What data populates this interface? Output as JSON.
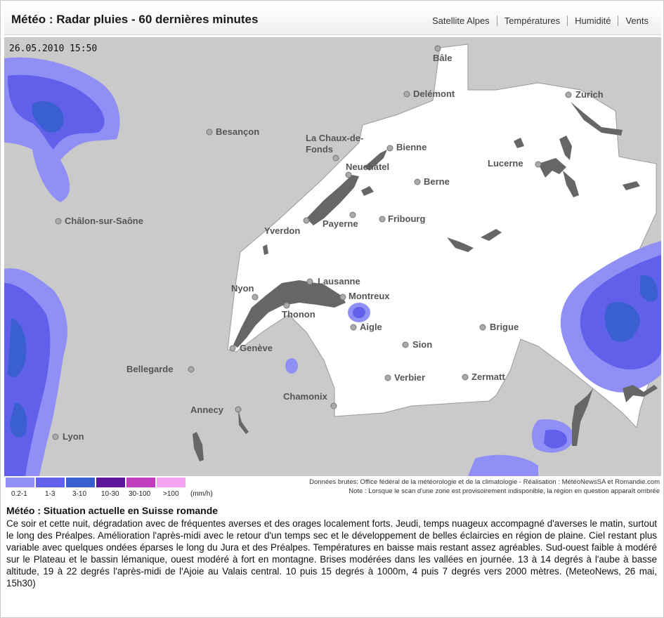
{
  "header": {
    "title": "Météo : Radar pluies - 60 dernières minutes",
    "nav": [
      {
        "label": "Satellite Alpes"
      },
      {
        "label": "Températures"
      },
      {
        "label": "Humidité"
      },
      {
        "label": "Vents"
      }
    ]
  },
  "map": {
    "timestamp": "26.05.2010 15:50",
    "colors": {
      "outside_region": "#cacaca",
      "region": "#ffffff",
      "lakes": "#666666",
      "city_marker": "#aaaaaa"
    },
    "cities": [
      {
        "name": "Bâle"
      },
      {
        "name": "Delémont"
      },
      {
        "name": "Zurich"
      },
      {
        "name": "Besançon"
      },
      {
        "name": "La Chaux-de-"
      },
      {
        "name": "Fonds"
      },
      {
        "name": "Bienne"
      },
      {
        "name": "Neuchâtel"
      },
      {
        "name": "Lucerne"
      },
      {
        "name": "Berne"
      },
      {
        "name": "Châlon-sur-Saône"
      },
      {
        "name": "Payerne"
      },
      {
        "name": "Fribourg"
      },
      {
        "name": "Yverdon"
      },
      {
        "name": "Lausanne"
      },
      {
        "name": "Nyon"
      },
      {
        "name": "Montreux"
      },
      {
        "name": "Thonon"
      },
      {
        "name": "Aigle"
      },
      {
        "name": "Brigue"
      },
      {
        "name": "Sion"
      },
      {
        "name": "Genève"
      },
      {
        "name": "Bellegarde"
      },
      {
        "name": "Verbier"
      },
      {
        "name": "Zermatt"
      },
      {
        "name": "Chamonix"
      },
      {
        "name": "Annecy"
      },
      {
        "name": "Lyon"
      }
    ]
  },
  "legend": {
    "items": [
      {
        "range": "0.2-1",
        "color": "#8f8ff5"
      },
      {
        "range": "1-3",
        "color": "#6060ea"
      },
      {
        "range": "3-10",
        "color": "#3a5fd0"
      },
      {
        "range": "10-30",
        "color": "#5c159c"
      },
      {
        "range": "30-100",
        "color": "#c23cc0"
      },
      {
        "range": ">100",
        "color": "#f5a3f0"
      }
    ],
    "unit": "(mm/h)",
    "credits": "Données brutes: Office fédéral de la météorologie et de la climatologie - Réalisation : MétéoNewsSA et Romandie.com",
    "note": "Note : Lorsque le scan d'une zone est provisoirement indisponible, la région en question apparaît ombrée"
  },
  "bulletin": {
    "title": "Météo : Situation actuelle en Suisse romande",
    "text": "Ce soir et cette nuit, dégradation avec de fréquentes averses et des orages localement forts. Jeudi, temps nuageux accompagné d'averses le matin, surtout le long des Préalpes. Amélioration l'après-midi avec le retour d'un temps sec et le développement de belles éclaircies en région de plaine. Ciel restant plus variable avec quelques ondées éparses le long du Jura et des Préalpes. Températures en baisse mais restant assez agréables. Sud-ouest faible à modéré sur le Plateau et le bassin lémanique, ouest modéré à fort en montagne. Brises modérées dans les vallées en journée. 13 à 14 degrés à l'aube à basse altitude, 19 à 22 degrés l'après-midi de l'Ajoie au Valais central. 10 puis 15 degrés à 1000m, 4 puis 7 degrés vers 2000 mètres. (MeteoNews, 26 mai, 15h30)"
  }
}
